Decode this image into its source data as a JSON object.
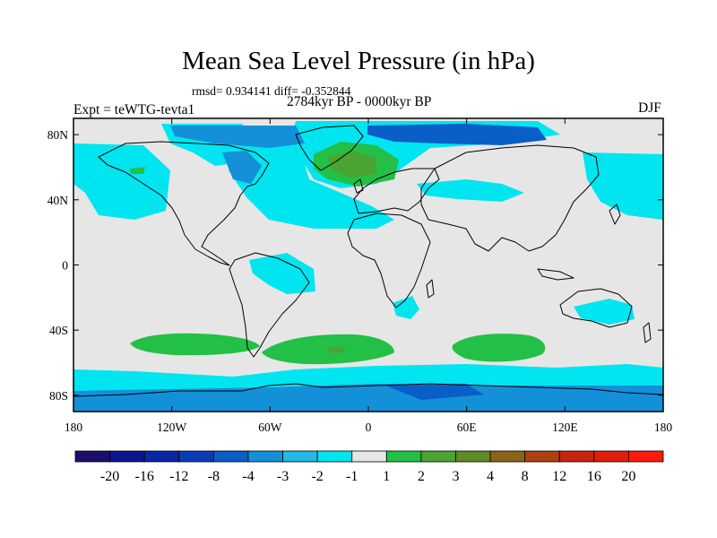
{
  "title": "Mean Sea Level Pressure (in hPa)",
  "stats": "rmsd= 0.934141 diff= -0.352844",
  "experiment": "Expt = teWTG-tevta1",
  "period": "2784kyr BP - 0000kyr BP",
  "season": "DJF",
  "map": {
    "lat_range": [
      -90,
      90
    ],
    "lon_range": [
      -180,
      180
    ],
    "lat_ticks": [
      "80N",
      "40N",
      "0",
      "40S",
      "80S"
    ],
    "lon_ticks": [
      "180",
      "120W",
      "60W",
      "0",
      "60E",
      "120E",
      "180"
    ],
    "background_color": "#e6e6e6"
  },
  "colorbar": {
    "labels": [
      "-20",
      "-16",
      "-12",
      "-8",
      "-4",
      "-3",
      "-2",
      "-1",
      "1",
      "2",
      "3",
      "4",
      "8",
      "12",
      "16",
      "20"
    ],
    "colors": [
      "#1a0f6b",
      "#10148c",
      "#0a25a6",
      "#0a3cb8",
      "#0a5ec8",
      "#1490d8",
      "#23b8e6",
      "#00e5f0",
      "#e6e6e6",
      "#22c046",
      "#4aa432",
      "#608a24",
      "#8a6418",
      "#b04012",
      "#c8240e",
      "#e01e0a",
      "#ff1a0a"
    ]
  }
}
